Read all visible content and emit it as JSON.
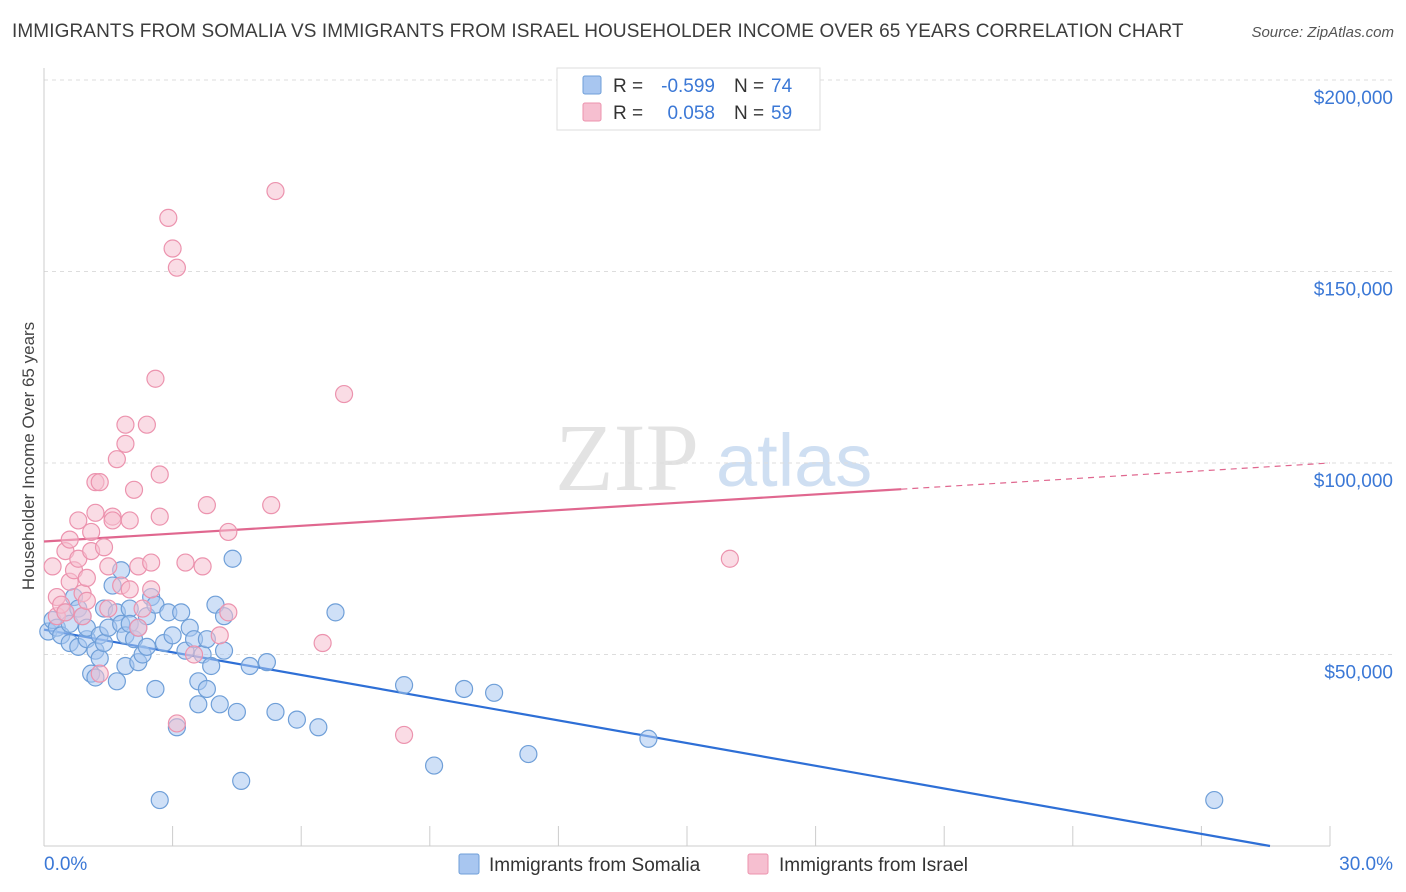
{
  "title": "IMMIGRANTS FROM SOMALIA VS IMMIGRANTS FROM ISRAEL HOUSEHOLDER INCOME OVER 65 YEARS CORRELATION CHART",
  "source": "Source: ZipAtlas.com",
  "watermark": {
    "zip": "ZIP",
    "atlas": "atlas"
  },
  "colors": {
    "somalia_fill": "#a8c6f0",
    "somalia_stroke": "#6f9fd8",
    "somalia_line": "#2e6fd6",
    "israel_fill": "#f6bfd0",
    "israel_stroke": "#ec93ae",
    "israel_line": "#e0678f",
    "axis_text": "#3b78d6",
    "grid": "#dddddd"
  },
  "legend_box": {
    "rows": [
      {
        "r_label": "R =",
        "r_value": "-0.599",
        "n_label": "N =",
        "n_value": "74"
      },
      {
        "r_label": "R =",
        "r_value": "0.058",
        "n_label": "N =",
        "n_value": "59"
      }
    ]
  },
  "chart_data": {
    "type": "scatter",
    "title": "IMMIGRANTS FROM SOMALIA VS IMMIGRANTS FROM ISRAEL HOUSEHOLDER INCOME OVER 65 YEARS CORRELATION CHART",
    "xlabel": "",
    "ylabel": "Householder Income Over 65 years",
    "xlim": [
      0,
      30
    ],
    "ylim": [
      0,
      200000
    ],
    "x_tick_labels": [
      {
        "value": 0,
        "label": "0.0%"
      },
      {
        "value": 30,
        "label": "30.0%"
      }
    ],
    "y_tick_labels": [
      {
        "value": 50000,
        "label": "$50,000"
      },
      {
        "value": 100000,
        "label": "$100,000"
      },
      {
        "value": 150000,
        "label": "$150,000"
      },
      {
        "value": 200000,
        "label": "$200,000"
      }
    ],
    "grid": true,
    "legend": [
      "Immigrants from Somalia",
      "Immigrants from Israel"
    ],
    "series": [
      {
        "name": "Immigrants from Somalia",
        "R": -0.599,
        "N": 74,
        "trend": {
          "x0": 0,
          "y0": 56500,
          "x1": 28.6,
          "y1": 0,
          "solid_to": 28.6
        },
        "points": [
          [
            0.1,
            56000
          ],
          [
            0.2,
            59000
          ],
          [
            0.3,
            57000
          ],
          [
            0.4,
            55000
          ],
          [
            0.5,
            61000
          ],
          [
            0.6,
            58000
          ],
          [
            0.6,
            53000
          ],
          [
            0.7,
            65000
          ],
          [
            0.8,
            62000
          ],
          [
            0.8,
            52000
          ],
          [
            0.9,
            60000
          ],
          [
            1.0,
            54000
          ],
          [
            1.0,
            57000
          ],
          [
            1.1,
            45000
          ],
          [
            1.2,
            51000
          ],
          [
            1.2,
            44000
          ],
          [
            1.3,
            55000
          ],
          [
            1.3,
            49000
          ],
          [
            1.4,
            62000
          ],
          [
            1.4,
            53000
          ],
          [
            1.5,
            57000
          ],
          [
            1.6,
            68000
          ],
          [
            1.7,
            61000
          ],
          [
            1.7,
            43000
          ],
          [
            1.8,
            72000
          ],
          [
            1.8,
            58000
          ],
          [
            1.9,
            55000
          ],
          [
            1.9,
            47000
          ],
          [
            2.0,
            62000
          ],
          [
            2.0,
            58000
          ],
          [
            2.1,
            54000
          ],
          [
            2.2,
            48000
          ],
          [
            2.2,
            57000
          ],
          [
            2.3,
            50000
          ],
          [
            2.4,
            52000
          ],
          [
            2.4,
            60000
          ],
          [
            2.5,
            65000
          ],
          [
            2.6,
            41000
          ],
          [
            2.6,
            63000
          ],
          [
            2.8,
            53000
          ],
          [
            2.9,
            61000
          ],
          [
            3.0,
            55000
          ],
          [
            3.1,
            31000
          ],
          [
            3.2,
            61000
          ],
          [
            3.3,
            51000
          ],
          [
            3.4,
            57000
          ],
          [
            3.5,
            54000
          ],
          [
            3.6,
            37000
          ],
          [
            3.6,
            43000
          ],
          [
            3.7,
            50000
          ],
          [
            3.8,
            54000
          ],
          [
            3.8,
            41000
          ],
          [
            3.9,
            47000
          ],
          [
            4.0,
            63000
          ],
          [
            4.1,
            37000
          ],
          [
            4.2,
            51000
          ],
          [
            4.2,
            60000
          ],
          [
            4.4,
            75000
          ],
          [
            4.5,
            35000
          ],
          [
            4.6,
            17000
          ],
          [
            4.8,
            47000
          ],
          [
            5.2,
            48000
          ],
          [
            5.4,
            35000
          ],
          [
            5.9,
            33000
          ],
          [
            6.4,
            31000
          ],
          [
            6.8,
            61000
          ],
          [
            8.4,
            42000
          ],
          [
            9.1,
            21000
          ],
          [
            9.8,
            41000
          ],
          [
            10.5,
            40000
          ],
          [
            11.3,
            24000
          ],
          [
            14.1,
            28000
          ],
          [
            27.3,
            12000
          ],
          [
            2.7,
            12000
          ]
        ]
      },
      {
        "name": "Immigrants from Israel",
        "R": 0.058,
        "N": 59,
        "trend": {
          "x0": 0,
          "y0": 79500,
          "x1": 30,
          "y1": 100000,
          "solid_to": 20.0
        },
        "points": [
          [
            0.2,
            73000
          ],
          [
            0.3,
            65000
          ],
          [
            0.3,
            60000
          ],
          [
            0.4,
            63000
          ],
          [
            0.5,
            77000
          ],
          [
            0.5,
            61000
          ],
          [
            0.6,
            69000
          ],
          [
            0.6,
            80000
          ],
          [
            0.7,
            72000
          ],
          [
            0.8,
            75000
          ],
          [
            0.8,
            85000
          ],
          [
            0.9,
            66000
          ],
          [
            0.9,
            60000
          ],
          [
            1.0,
            64000
          ],
          [
            1.0,
            70000
          ],
          [
            1.1,
            77000
          ],
          [
            1.1,
            82000
          ],
          [
            1.2,
            87000
          ],
          [
            1.2,
            95000
          ],
          [
            1.3,
            95000
          ],
          [
            1.3,
            45000
          ],
          [
            1.4,
            78000
          ],
          [
            1.5,
            73000
          ],
          [
            1.5,
            62000
          ],
          [
            1.6,
            86000
          ],
          [
            1.6,
            85000
          ],
          [
            1.7,
            101000
          ],
          [
            1.8,
            68000
          ],
          [
            1.9,
            110000
          ],
          [
            1.9,
            105000
          ],
          [
            2.0,
            85000
          ],
          [
            2.0,
            67000
          ],
          [
            2.1,
            93000
          ],
          [
            2.2,
            57000
          ],
          [
            2.2,
            73000
          ],
          [
            2.3,
            62000
          ],
          [
            2.4,
            110000
          ],
          [
            2.5,
            74000
          ],
          [
            2.5,
            67000
          ],
          [
            2.6,
            122000
          ],
          [
            2.7,
            97000
          ],
          [
            2.7,
            86000
          ],
          [
            2.9,
            164000
          ],
          [
            3.0,
            156000
          ],
          [
            3.1,
            151000
          ],
          [
            3.1,
            32000
          ],
          [
            3.3,
            74000
          ],
          [
            3.5,
            50000
          ],
          [
            3.7,
            73000
          ],
          [
            3.8,
            89000
          ],
          [
            4.1,
            55000
          ],
          [
            4.3,
            61000
          ],
          [
            4.3,
            82000
          ],
          [
            5.3,
            89000
          ],
          [
            5.4,
            171000
          ],
          [
            6.5,
            53000
          ],
          [
            7.0,
            118000
          ],
          [
            8.4,
            29000
          ],
          [
            16.0,
            75000
          ]
        ]
      }
    ]
  }
}
